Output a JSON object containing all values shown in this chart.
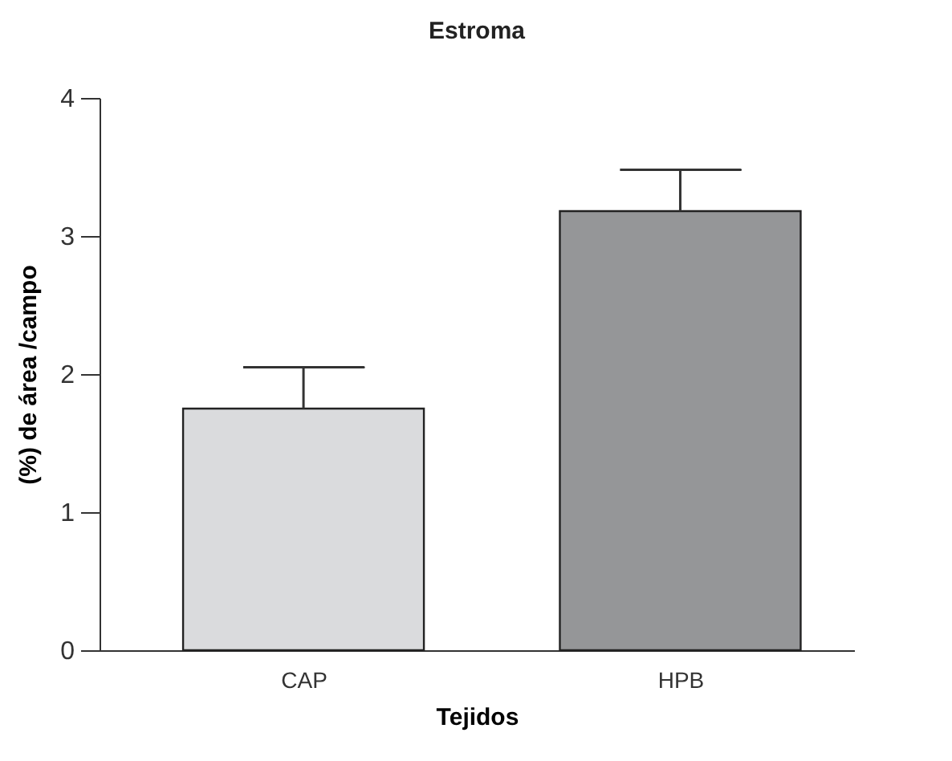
{
  "chart_data": {
    "type": "bar",
    "title": "Estroma",
    "xlabel": "Tejidos",
    "ylabel": "(%) de área /campo",
    "categories": [
      "CAP",
      "HPB"
    ],
    "values": [
      1.75,
      3.18
    ],
    "colors": [
      "#dadbdd",
      "#959698"
    ],
    "errors": [
      [
        1.75,
        2.05
      ],
      [
        3.18,
        3.48
      ]
    ],
    "ylim": [
      0,
      4
    ],
    "yticks": [
      0,
      1,
      2,
      3,
      4
    ],
    "grid": false
  }
}
